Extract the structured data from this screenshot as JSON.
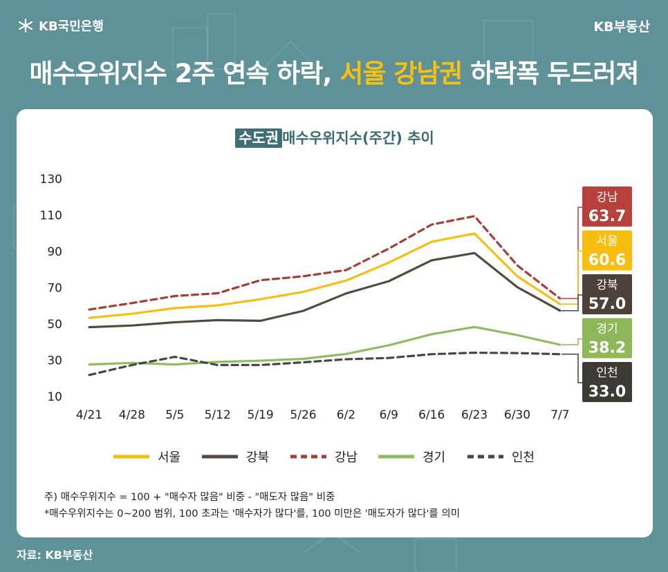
{
  "brand": {
    "bank_name": "KB국민은행",
    "logo_mark": "star-logo",
    "app_name": "KB부동산"
  },
  "headline": {
    "part1": "매수우위지수 2주 연속 하락, ",
    "highlight": "서울 강남권",
    "part2": " 하락폭 두드러져"
  },
  "notes": [
    "주) 매수우위지수 = 100 + \"매수자 많음\" 비중 - \"매도자 많음\" 비중",
    "*매수우위지수는 0~200 범위, 100 초과는 '매수자가 많다'를, 100 미만은 '매도자가 많다'를 의미"
  ],
  "source": "자료: KB부동산",
  "colors": {
    "background": "#5f9198",
    "accent_yellow": "#f7c10f",
    "title_teal": "#3a6b70"
  },
  "chart_data": {
    "type": "line",
    "title_tag": "수도권",
    "title": "매수우위지수(주간) 추이",
    "xlabel": "",
    "ylabel": "",
    "ylim": [
      10,
      130
    ],
    "yticks": [
      10,
      30,
      50,
      70,
      90,
      110,
      130
    ],
    "grid": false,
    "legend_position": "bottom",
    "categories": [
      "4/21",
      "4/28",
      "5/5",
      "5/12",
      "5/19",
      "5/26",
      "6/2",
      "6/9",
      "6/16",
      "6/23",
      "6/30",
      "7/7"
    ],
    "series": [
      {
        "name": "서울",
        "color": "#f7bd0f",
        "dashed": false,
        "label_color": "#f7bd0f",
        "final_label": "60.6",
        "values": [
          53.0,
          55.3,
          58.4,
          59.9,
          63.3,
          67.4,
          73.6,
          83.5,
          95.0,
          99.6,
          76.0,
          60.6
        ]
      },
      {
        "name": "강북",
        "color": "#524940",
        "dashed": false,
        "label_color": "#4e4238",
        "final_label": "57.0",
        "values": [
          47.9,
          48.8,
          50.6,
          51.8,
          51.4,
          56.9,
          66.5,
          73.3,
          84.8,
          88.8,
          70.0,
          57.0
        ]
      },
      {
        "name": "강남",
        "color": "#a83c37",
        "dashed": true,
        "label_color": "#b8403b",
        "final_label": "63.7",
        "values": [
          57.6,
          61.2,
          65.1,
          66.6,
          73.8,
          76.0,
          79.4,
          91.3,
          104.5,
          109.2,
          82.0,
          63.7
        ]
      },
      {
        "name": "경기",
        "color": "#8fbc5f",
        "dashed": false,
        "label_color": "#8db758",
        "final_label": "38.2",
        "values": [
          27.3,
          28.2,
          27.3,
          28.7,
          29.4,
          30.4,
          33.1,
          37.9,
          44.0,
          48.0,
          43.5,
          38.2
        ]
      },
      {
        "name": "인천",
        "color": "#454545",
        "dashed": true,
        "label_color": "#3e3a36",
        "final_label": "33.0",
        "values": [
          21.5,
          27.0,
          31.5,
          27.0,
          27.0,
          28.5,
          30.2,
          30.9,
          33.0,
          33.8,
          33.6,
          33.0
        ]
      }
    ],
    "end_label_order": [
      "강남",
      "서울",
      "강북",
      "경기",
      "인천"
    ]
  }
}
